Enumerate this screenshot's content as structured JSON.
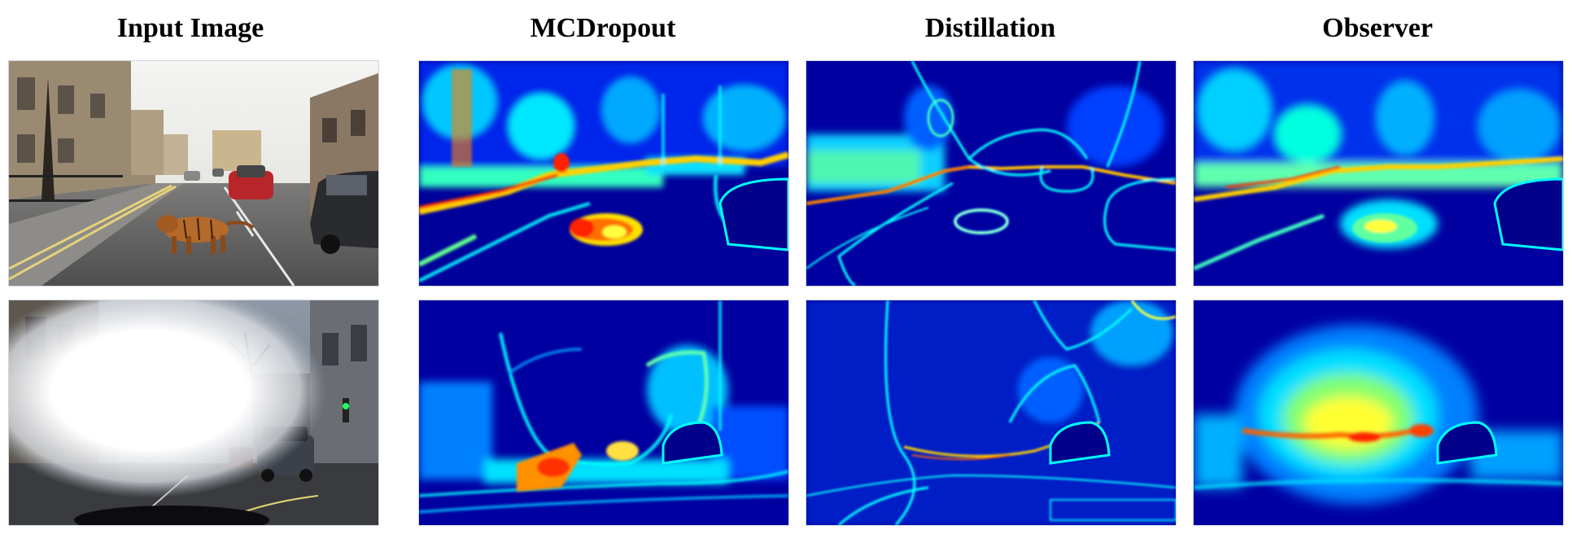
{
  "figure": {
    "columns": [
      {
        "title": "Input Image",
        "kind": "photo"
      },
      {
        "title": "MCDropout",
        "kind": "heatmap"
      },
      {
        "title": "Distillation",
        "kind": "heatmap"
      },
      {
        "title": "Observer",
        "kind": "heatmap"
      }
    ],
    "rows": [
      {
        "scene": "street-with-tiger",
        "description_visible": false
      },
      {
        "scene": "street-with-glare",
        "description_visible": false
      }
    ],
    "colormap": [
      "#00008f",
      "#0000ff",
      "#00a0ff",
      "#00ffff",
      "#7fff7f",
      "#ffff00",
      "#ff8000",
      "#ff0000",
      "#800000"
    ]
  }
}
